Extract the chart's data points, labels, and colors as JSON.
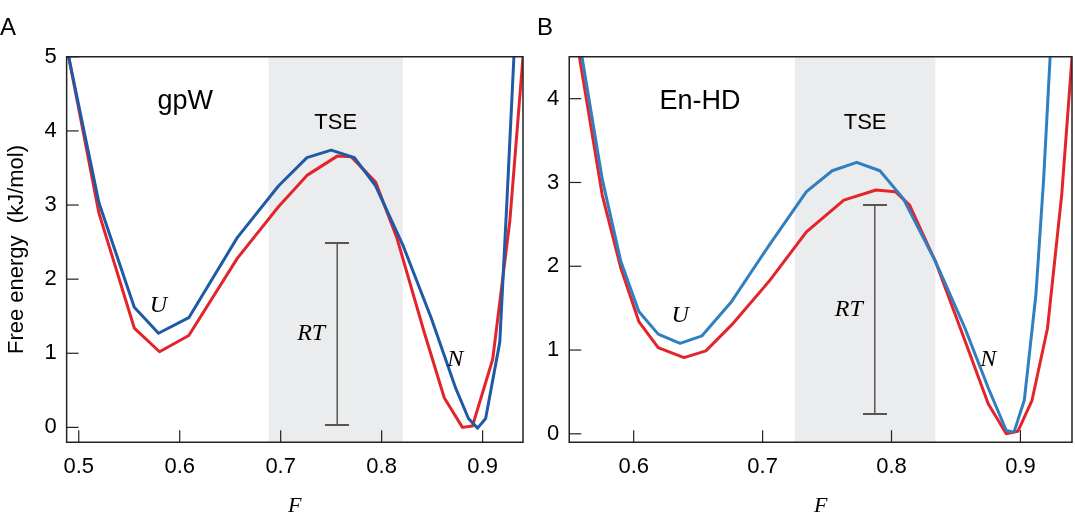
{
  "chart_data": [
    {
      "type": "line",
      "title": "A",
      "xlabel": "F",
      "ylabel": "Free energy  (kJ/mol)",
      "marker": "none",
      "xlim": [
        0.488,
        0.94
      ],
      "ylim": [
        -0.2,
        5
      ],
      "xticks": [
        0.5,
        0.6,
        0.7,
        0.8,
        0.9
      ],
      "yticks": [
        0,
        1,
        2,
        3,
        4,
        5
      ],
      "series": [
        {
          "color": "#1f5aa6",
          "x": [
            0.49,
            0.52,
            0.555,
            0.579,
            0.609,
            0.657,
            0.698,
            0.726,
            0.75,
            0.773,
            0.794,
            0.821,
            0.849,
            0.873,
            0.886,
            0.895,
            0.903,
            0.917,
            0.924,
            0.931
          ],
          "values": [
            5.0,
            3.03,
            1.62,
            1.27,
            1.48,
            2.56,
            3.26,
            3.64,
            3.74,
            3.64,
            3.26,
            2.46,
            1.48,
            0.54,
            0.12,
            -0.01,
            0.12,
            1.15,
            3.03,
            5.0
          ]
        },
        {
          "color": "#e3242b",
          "x": [
            0.49,
            0.52,
            0.555,
            0.58,
            0.609,
            0.657,
            0.698,
            0.726,
            0.756,
            0.77,
            0.794,
            0.815,
            0.842,
            0.862,
            0.88,
            0.89,
            0.91,
            0.927,
            0.94
          ],
          "values": [
            5.0,
            2.89,
            1.34,
            1.02,
            1.24,
            2.28,
            2.98,
            3.4,
            3.66,
            3.65,
            3.31,
            2.56,
            1.29,
            0.4,
            0.0,
            0.02,
            0.92,
            2.79,
            5.0
          ]
        },
        {
          "color": "#555555",
          "x": [
            0.756,
            0.756,
            0.756
          ],
          "values": [
            0.03,
            1.26,
            2.49
          ]
        }
      ],
      "bands": [
        {
          "axis": "x",
          "from": 0.688,
          "to": 0.821,
          "label": "TSE",
          "color": "#ebecee"
        }
      ],
      "annotations": [
        "gpW",
        {
          "text": "U",
          "x": 0.579,
          "y": 1.27
        },
        {
          "text": "N",
          "x": 0.873,
          "y": 0.54
        },
        {
          "text": "RT",
          "x": 0.756,
          "y": 1.26
        }
      ]
    },
    {
      "type": "line",
      "title": "B",
      "xlabel": "F",
      "marker": "none",
      "xlim": [
        0.55,
        0.94
      ],
      "ylim": [
        -0.1,
        4.5
      ],
      "xticks": [
        0.6,
        0.7,
        0.8,
        0.9
      ],
      "yticks": [
        0,
        1,
        2,
        3,
        4
      ],
      "series": [
        {
          "color": "#2f7fc1",
          "x": [
            0.56,
            0.5756,
            0.59,
            0.604,
            0.619,
            0.636,
            0.653,
            0.676,
            0.705,
            0.734,
            0.754,
            0.773,
            0.791,
            0.809,
            0.834,
            0.857,
            0.875,
            0.889,
            0.895,
            0.903,
            0.912,
            0.918,
            0.923
          ],
          "values": [
            4.49,
            3.04,
            2.06,
            1.46,
            1.19,
            1.08,
            1.17,
            1.58,
            2.25,
            2.89,
            3.14,
            3.24,
            3.14,
            2.81,
            2.06,
            1.26,
            0.55,
            0.04,
            0.02,
            0.4,
            1.66,
            3.04,
            4.49
          ]
        },
        {
          "color": "#e3242b",
          "x": [
            0.558,
            0.5756,
            0.59,
            0.604,
            0.619,
            0.639,
            0.656,
            0.676,
            0.705,
            0.734,
            0.763,
            0.788,
            0.803,
            0.814,
            0.834,
            0.857,
            0.875,
            0.889,
            0.898,
            0.909,
            0.921,
            0.932,
            0.94
          ],
          "values": [
            4.49,
            2.85,
            1.98,
            1.34,
            1.03,
            0.91,
            0.99,
            1.3,
            1.82,
            2.41,
            2.79,
            2.91,
            2.89,
            2.73,
            2.06,
            1.11,
            0.36,
            0.0,
            0.03,
            0.4,
            1.26,
            2.85,
            4.49
          ]
        },
        {
          "color": "#555555",
          "x": [
            0.787,
            0.787,
            0.787
          ],
          "values": [
            0.24,
            1.48,
            2.73
          ]
        }
      ],
      "bands": [
        {
          "axis": "x",
          "from": 0.725,
          "to": 0.834,
          "label": "TSE",
          "color": "#ebecee"
        }
      ],
      "annotations": [
        "En-HD",
        {
          "text": "U",
          "x": 0.636,
          "y": 1.08
        },
        {
          "text": "N",
          "x": 0.875,
          "y": 0.55
        },
        {
          "text": "RT",
          "x": 0.787,
          "y": 1.48
        }
      ]
    }
  ]
}
